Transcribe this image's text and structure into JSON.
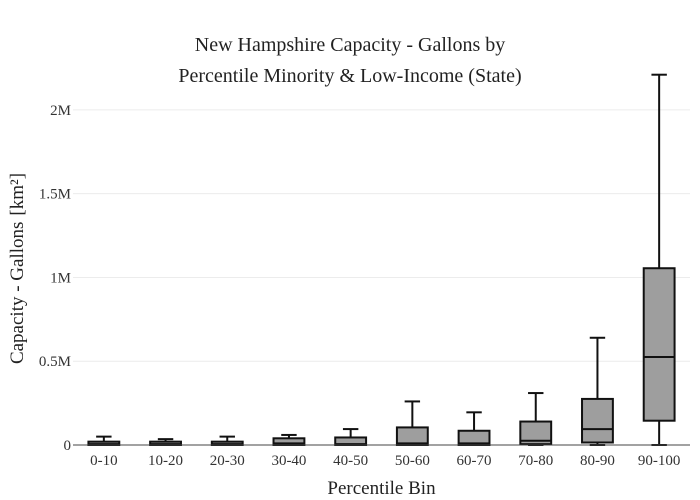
{
  "chart_data": {
    "type": "box",
    "title_lines": [
      "New Hampshire Capacity - Gallons by",
      "Percentile Minority & Low-Income (State)"
    ],
    "xlabel": "Percentile Bin",
    "ylabel": "Capacity - Gallons",
    "ylabel_unit": "[km²]",
    "ylim": [
      0,
      2250000
    ],
    "yticks": [
      {
        "value": 0,
        "label": "0"
      },
      {
        "value": 500000,
        "label": "0.5M"
      },
      {
        "value": 1000000,
        "label": "1M"
      },
      {
        "value": 1500000,
        "label": "1.5M"
      },
      {
        "value": 2000000,
        "label": "2M"
      }
    ],
    "grid": true,
    "box_color": "#9e9e9e",
    "line_color": "#111111",
    "categories": [
      "0-10",
      "10-20",
      "20-30",
      "30-40",
      "40-50",
      "50-60",
      "60-70",
      "70-80",
      "80-90",
      "90-100"
    ],
    "boxes": [
      {
        "category": "0-10",
        "min": 0,
        "q1": 0,
        "median": 5000,
        "q3": 20000,
        "max": 50000
      },
      {
        "category": "10-20",
        "min": 0,
        "q1": 0,
        "median": 5000,
        "q3": 20000,
        "max": 35000
      },
      {
        "category": "20-30",
        "min": 0,
        "q1": 0,
        "median": 5000,
        "q3": 20000,
        "max": 50000
      },
      {
        "category": "30-40",
        "min": 0,
        "q1": 0,
        "median": 10000,
        "q3": 40000,
        "max": 60000
      },
      {
        "category": "40-50",
        "min": 0,
        "q1": 0,
        "median": 5000,
        "q3": 45000,
        "max": 95000
      },
      {
        "category": "50-60",
        "min": 0,
        "q1": 0,
        "median": 10000,
        "q3": 105000,
        "max": 260000
      },
      {
        "category": "60-70",
        "min": 0,
        "q1": 0,
        "median": 10000,
        "q3": 85000,
        "max": 195000
      },
      {
        "category": "70-80",
        "min": 0,
        "q1": 5000,
        "median": 25000,
        "q3": 140000,
        "max": 310000
      },
      {
        "category": "80-90",
        "min": 0,
        "q1": 15000,
        "median": 95000,
        "q3": 275000,
        "max": 640000
      },
      {
        "category": "90-100",
        "min": 0,
        "q1": 145000,
        "median": 525000,
        "q3": 1055000,
        "max": 2210000
      }
    ]
  }
}
